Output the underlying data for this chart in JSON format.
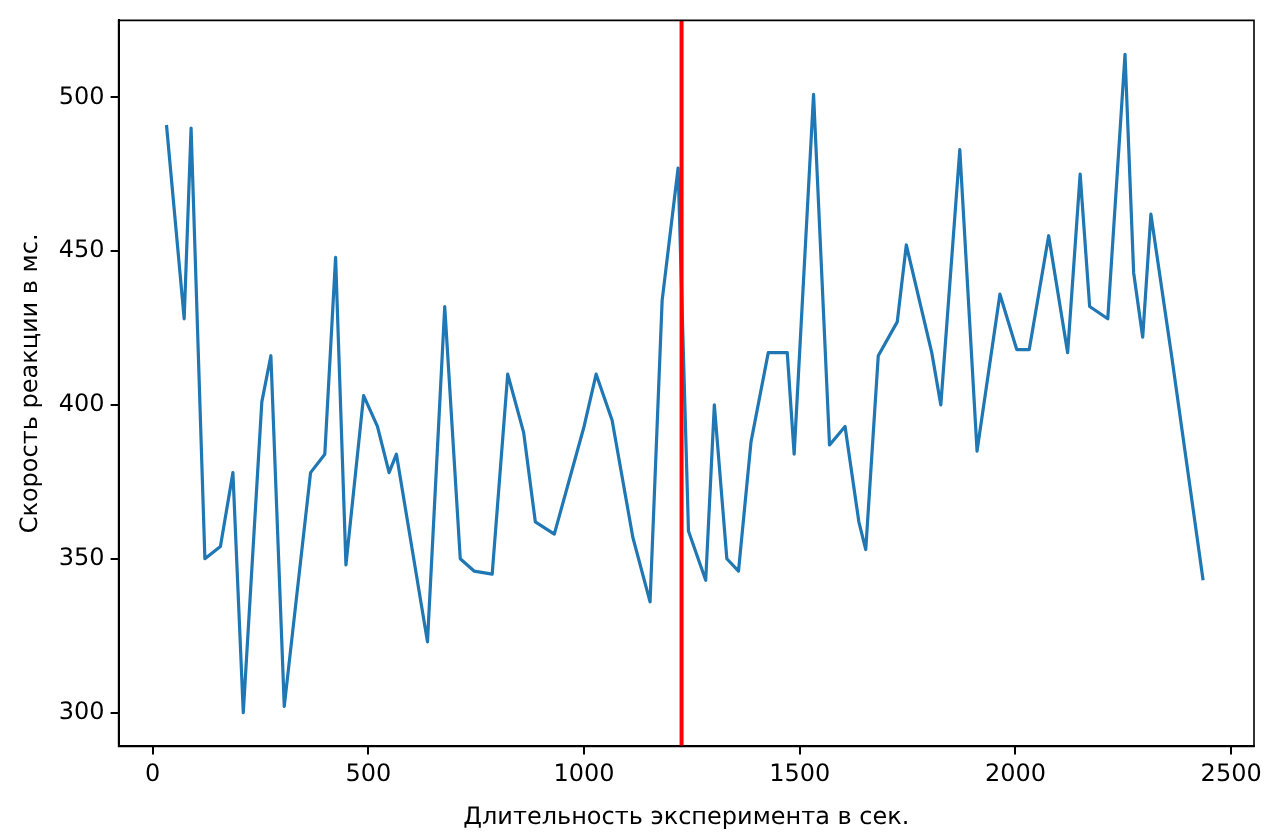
{
  "chart_data": {
    "type": "line",
    "xlabel": "Длительность эксперимента в сек.",
    "ylabel": "Скорость реакции в мс.",
    "x": [
      32,
      73,
      89,
      121,
      157,
      186,
      210,
      253,
      274,
      305,
      366,
      399,
      424,
      448,
      489,
      521,
      548,
      565,
      637,
      677,
      713,
      745,
      787,
      823,
      860,
      887,
      931,
      1000,
      1028,
      1065,
      1113,
      1153,
      1181,
      1218,
      1242,
      1282,
      1302,
      1331,
      1358,
      1387,
      1427,
      1471,
      1487,
      1532,
      1569,
      1605,
      1637,
      1653,
      1682,
      1726,
      1747,
      1806,
      1827,
      1871,
      1911,
      1964,
      2003,
      2032,
      2077,
      2121,
      2150,
      2172,
      2214,
      2254,
      2274,
      2295,
      2314,
      2363,
      2435
    ],
    "series": [
      {
        "color": "#1f77b4",
        "values": [
          491,
          428,
          490,
          350,
          354,
          378,
          300,
          401,
          416,
          302,
          378,
          384,
          448,
          348,
          403,
          393,
          378,
          384,
          323,
          432,
          350,
          346,
          345,
          410,
          391,
          362,
          358,
          393,
          410,
          395,
          357,
          336,
          434,
          477,
          359,
          343,
          400,
          350,
          346,
          388,
          417,
          417,
          384,
          501,
          387,
          393,
          362,
          353,
          416,
          427,
          452,
          417,
          400,
          483,
          385,
          436,
          418,
          418,
          455,
          417,
          475,
          432,
          428,
          514,
          443,
          422,
          462,
          415,
          343
        ]
      }
    ],
    "xlim": [
      -79,
      2553
    ],
    "ylim": [
      289,
      525
    ],
    "xticks": [
      0,
      500,
      1000,
      1500,
      2000,
      2500
    ],
    "yticks": [
      300,
      350,
      400,
      450,
      500
    ],
    "ref_lines": [
      {
        "axis": "x",
        "value": 1226,
        "color": "#ff0000"
      }
    ],
    "grid": false,
    "legend": false
  }
}
